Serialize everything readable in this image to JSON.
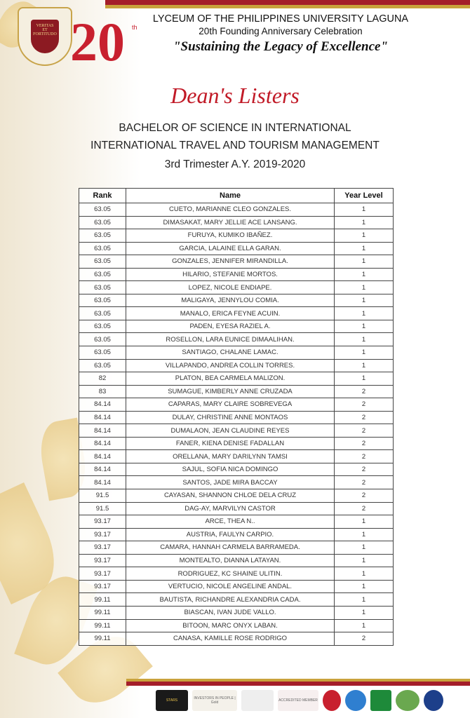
{
  "header": {
    "university": "LYCEUM OF THE PHILIPPINES UNIVERSITY LAGUNA",
    "celebration": "20th Founding Anniversary Celebration",
    "theme": "\"Sustaining the Legacy of Excellence\"",
    "seal_text": "VERITAS ET FORTITUDO",
    "anniv_number": "20",
    "anniv_suffix": "th"
  },
  "title": "Dean's Listers",
  "program_line1": "BACHELOR OF SCIENCE IN INTERNATIONAL",
  "program_line2": "INTERNATIONAL TRAVEL AND TOURISM MANAGEMENT",
  "term": "3rd Trimester A.Y. 2019-2020",
  "table": {
    "headers": [
      "Rank",
      "Name",
      "Year Level"
    ],
    "rows": [
      [
        "63.05",
        "CUETO, MARIANNE CLEO GONZALES.",
        "1"
      ],
      [
        "63.05",
        "DIMASAKAT, MARY JELLIE ACE LANSANG.",
        "1"
      ],
      [
        "63.05",
        "FURUYA, KUMIKO IBAÑEZ.",
        "1"
      ],
      [
        "63.05",
        "GARCIA, LALAINE ELLA GARAN.",
        "1"
      ],
      [
        "63.05",
        "GONZALES, JENNIFER MIRANDILLA.",
        "1"
      ],
      [
        "63.05",
        "HILARIO, STEFANIE MORTOS.",
        "1"
      ],
      [
        "63.05",
        "LOPEZ, NICOLE ENDIAPE.",
        "1"
      ],
      [
        "63.05",
        "MALIGAYA, JENNYLOU COMIA.",
        "1"
      ],
      [
        "63.05",
        "MANALO, ERICA FEYNE ACUIN.",
        "1"
      ],
      [
        "63.05",
        "PADEN, EYESA RAZIEL A.",
        "1"
      ],
      [
        "63.05",
        "ROSELLON, LARA EUNICE DIMAALIHAN.",
        "1"
      ],
      [
        "63.05",
        "SANTIAGO, CHALANE LAMAC.",
        "1"
      ],
      [
        "63.05",
        "VILLAPANDO, ANDREA COLLIN TORRES.",
        "1"
      ],
      [
        "82",
        "PLATON, BEA CARMELA MALIZON.",
        "1"
      ],
      [
        "83",
        "SUMAGUE, KIMBERLY ANNE CRUZADA",
        "2"
      ],
      [
        "84.14",
        "CAPARAS, MARY CLAIRE SOBREVEGA",
        "2"
      ],
      [
        "84.14",
        "DULAY, CHRISTINE ANNE MONTAOS",
        "2"
      ],
      [
        "84.14",
        "DUMALAON, JEAN CLAUDINE REYES",
        "2"
      ],
      [
        "84.14",
        "FANER, KIENA DENISE FADALLAN",
        "2"
      ],
      [
        "84.14",
        "ORELLANA, MARY DARILYNN TAMSI",
        "2"
      ],
      [
        "84.14",
        "SAJUL, SOFIA NICA DOMINGO",
        "2"
      ],
      [
        "84.14",
        "SANTOS, JADE MIRA BACCAY",
        "2"
      ],
      [
        "91.5",
        "CAYASAN, SHANNON CHLOE DELA CRUZ",
        "2"
      ],
      [
        "91.5",
        "DAG-AY, MARVILYN CASTOR",
        "2"
      ],
      [
        "93.17",
        "ARCE, THEA N..",
        "1"
      ],
      [
        "93.17",
        "AUSTRIA, FAULYN CARPIO.",
        "1"
      ],
      [
        "93.17",
        "CAMARA, HANNAH CARMELA BARRAMEDA.",
        "1"
      ],
      [
        "93.17",
        "MONTEALTO, DIANNA LATAYAN.",
        "1"
      ],
      [
        "93.17",
        "RODRIGUEZ, KC SHAINE ULITIN.",
        "1"
      ],
      [
        "93.17",
        "VERTUCIO, NICOLE ANGELINE ANDAL.",
        "1"
      ],
      [
        "99.11",
        "BAUTISTA, RICHANDRE ALEXANDRIA CADA.",
        "1"
      ],
      [
        "99.11",
        "BIASCAN, IVAN JUDE VALLO.",
        "1"
      ],
      [
        "99.11",
        "BITOON, MARC ONYX LABAN.",
        "1"
      ],
      [
        "99.11",
        "CANASA, KAMILLE ROSE RODRIGO",
        "2"
      ]
    ]
  },
  "footer_logos": [
    {
      "name": "stars-logo",
      "label": "STARS",
      "color": "#1a1a1a"
    },
    {
      "name": "investors-in-people-logo",
      "label": "INVESTORS IN PEOPLE | Gold",
      "color": "#f4f1ea"
    },
    {
      "name": "iso-certification-logo",
      "label": "",
      "color": "#eeeeee"
    },
    {
      "name": "accredited-member-logo",
      "label": "ACCREDITED MEMBER",
      "color": "#f6efef"
    },
    {
      "name": "partner-logo-1",
      "label": "",
      "color": "#c8202e"
    },
    {
      "name": "partner-logo-2",
      "label": "",
      "color": "#2f7fd0"
    },
    {
      "name": "partner-logo-3",
      "label": "",
      "color": "#1e8a3a"
    },
    {
      "name": "partner-logo-4",
      "label": "",
      "color": "#6aa84f"
    },
    {
      "name": "partner-logo-5",
      "label": "",
      "color": "#1d3f8a"
    }
  ]
}
